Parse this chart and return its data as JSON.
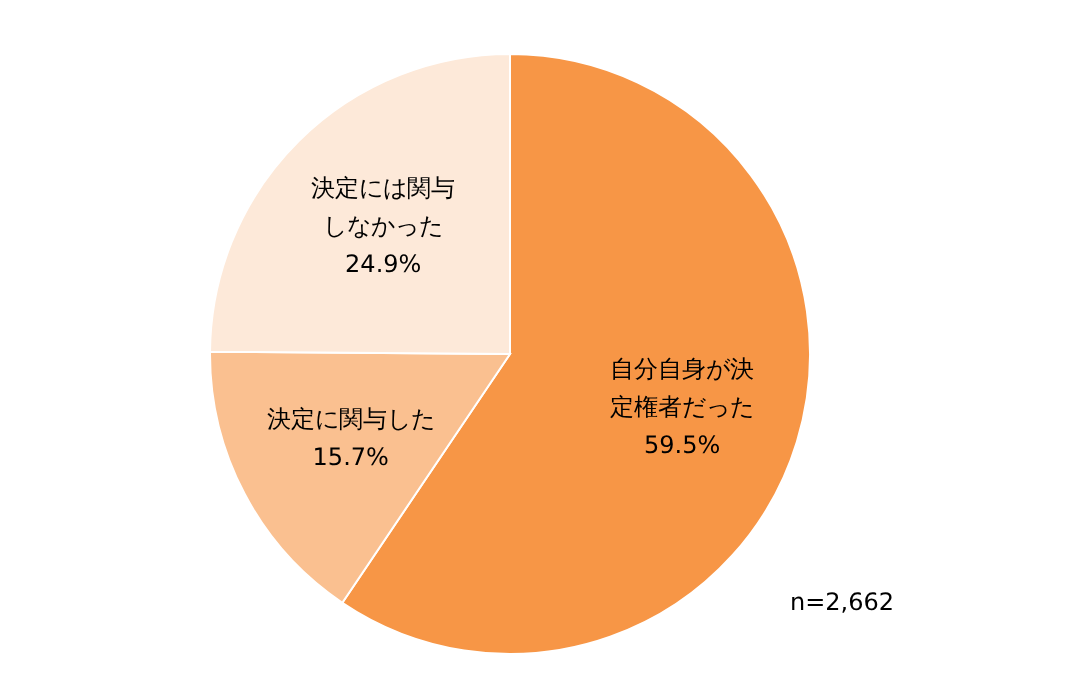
{
  "chart_data": {
    "type": "pie",
    "categories": [
      "自分自身が決定権者だった",
      "決定に関与した",
      "決定には関与しなかった"
    ],
    "values": [
      59.5,
      15.7,
      24.9
    ],
    "colors": [
      "#f79646",
      "#fac090",
      "#fde9d9"
    ],
    "value_labels": [
      "59.5%",
      "15.7%",
      "24.9%"
    ],
    "annotations": [
      "n=2,662"
    ]
  }
}
